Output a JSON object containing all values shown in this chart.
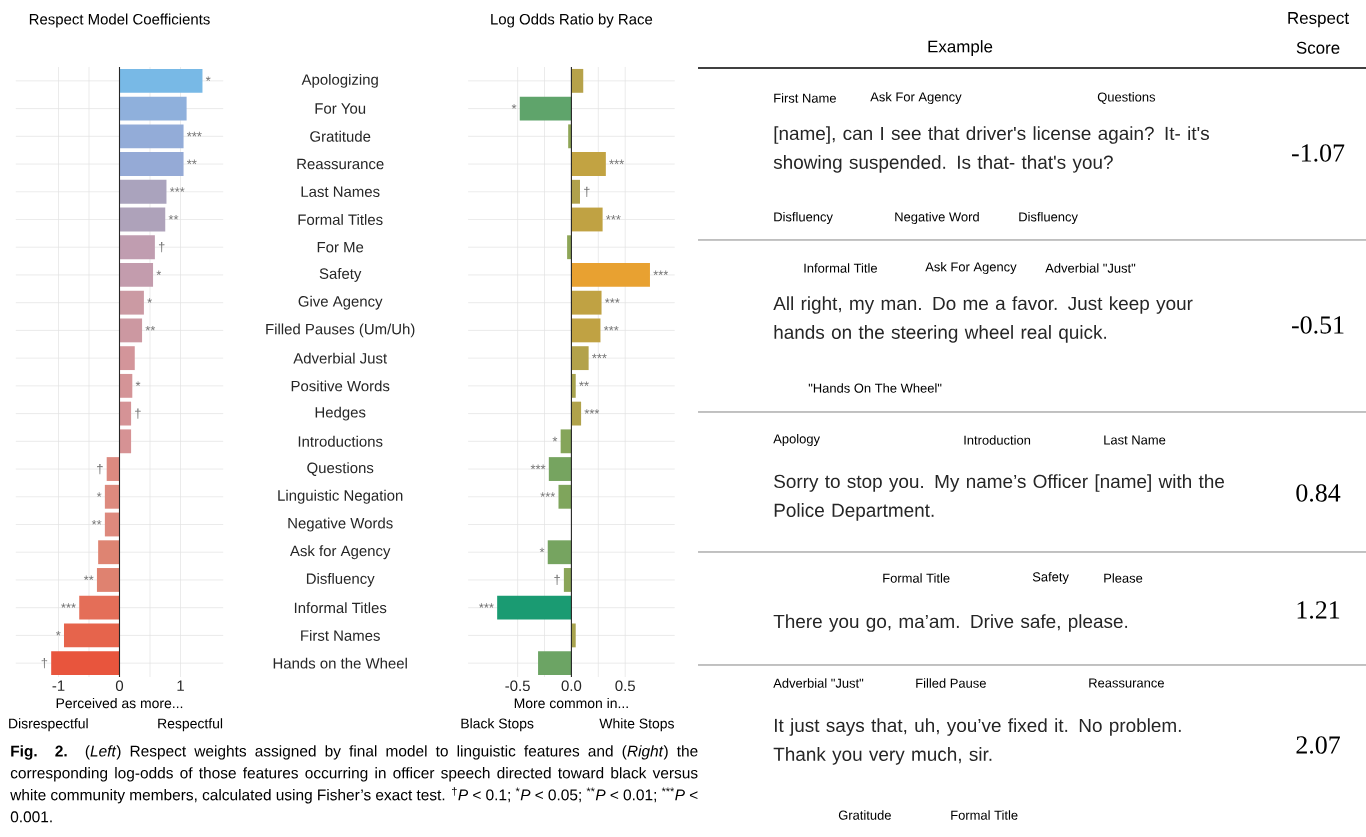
{
  "chart_data": [
    {
      "type": "bar",
      "orientation": "horizontal",
      "title": "Respect Model Coefficients",
      "xlabel": "Perceived as more...",
      "categories": [
        "Apologizing",
        "For You",
        "Gratitude",
        "Reassurance",
        "Last Names",
        "Formal Titles",
        "For Me",
        "Safety",
        "Give Agency",
        "Filled Pauses (Um/Uh)",
        "Adverbial Just",
        "Positive Words",
        "Hedges",
        "Introductions",
        "Questions",
        "Linguistic Negation",
        "Negative Words",
        "Ask for Agency",
        "Disfluency",
        "Informal Titles",
        "First Names",
        "Hands on the Wheel"
      ],
      "values": [
        1.36,
        1.1,
        1.05,
        1.05,
        0.77,
        0.75,
        0.58,
        0.55,
        0.4,
        0.37,
        0.25,
        0.21,
        0.19,
        0.19,
        -0.21,
        -0.24,
        -0.24,
        -0.35,
        -0.37,
        -0.66,
        -0.91,
        -1.12
      ],
      "colors": [
        "#78b9e6",
        "#8fb0dc",
        "#93acd8",
        "#95aad6",
        "#aaa3bd",
        "#aea2ba",
        "#c09db0",
        "#c39cad",
        "#cb9aa3",
        "#cc98a1",
        "#d3959a",
        "#d49497",
        "#d59396",
        "#d69294",
        "#dc8a80",
        "#dd8a7e",
        "#dd897d",
        "#de8472",
        "#df8270",
        "#e46e58",
        "#e6644c",
        "#e8553d"
      ],
      "value_labels": [
        "*",
        null,
        "***",
        "**",
        "***",
        "**",
        "†",
        "*",
        "*",
        "**",
        null,
        "*",
        "†",
        null,
        "†",
        "*",
        "**",
        null,
        "**",
        "***",
        "*",
        "†"
      ],
      "xlim": [
        -1.7,
        1.7
      ],
      "xticks": [
        -1,
        0,
        1
      ],
      "grid": true,
      "annotations": [
        "Disrespectful",
        "Respectful",
        "**Fig. 2.** (*Left*) Respect weights assigned by final model to linguistic features and (*Right*) the corresponding log-odds of those features occurring in officer speech directed toward black versus white community members, calculated using Fisher’s exact test. $^{†}$*P* < 0.1; $^{*}$*P* < 0.05; $^{**}$*P* < 0.01; $^{***}$*P* < 0.001."
      ]
    },
    {
      "type": "bar",
      "orientation": "horizontal",
      "title": "Log Odds Ratio by Race",
      "xlabel": "More common in...",
      "values": [
        0.11,
        -0.48,
        -0.03,
        0.32,
        0.08,
        0.29,
        -0.04,
        0.73,
        0.28,
        0.27,
        0.16,
        0.04,
        0.09,
        -0.1,
        -0.21,
        -0.12,
        0.0,
        -0.22,
        -0.07,
        -0.69,
        0.04,
        -0.31
      ],
      "colors": [
        "#b6a24a",
        "#5fa46b",
        "#8fa656",
        "#c2a342",
        "#b0a14c",
        "#c0a243",
        "#8ea657",
        "#e8a131",
        "#c0a243",
        "#c0a243",
        "#b3a24a",
        "#a8a34e",
        "#b0a24b",
        "#85a55a",
        "#76a460",
        "#7fa55c",
        "#98a553",
        "#76a460",
        "#8aa558",
        "#1a9b72",
        "#a8a34e",
        "#6ca464"
      ],
      "value_labels": [
        null,
        "*",
        null,
        "***",
        "†",
        "***",
        null,
        "***",
        "***",
        "***",
        "***",
        "**",
        "***",
        "*",
        "***",
        "***",
        null,
        "*",
        "†",
        "***",
        null,
        null
      ],
      "xlim": [
        -0.96,
        0.96
      ],
      "xticks": [
        -0.5,
        {
          "value": 0,
          "label": "0.0"
        },
        0.5
      ],
      "grid": true,
      "annotations": [
        "Black Stops",
        "White Stops"
      ]
    },
    {
      "type": "other",
      "annotations": [
        "Example",
        "Respect Score",
        "First Name",
        "Ask For Agency",
        "Questions",
        "[name], can I see that driver's license again? It- it's showing suspended. Is that- that's you?",
        "Disfluency",
        "Negative Word",
        "Disfluency",
        "-1.07",
        "Informal Title",
        "Ask For Agency",
        "Adverbial \"Just\"",
        "All right, my man. Do me a favor. Just keep your hands on the steering wheel real quick.",
        "\"Hands On The Wheel\"",
        "-0.51",
        "Apology",
        "Introduction",
        "Last Name",
        "Sorry to stop you. My name’s Officer [name] with the Police Department.",
        "0.84",
        "Formal Title",
        "Safety",
        "Please",
        "There you go, ma’am. Drive safe, please.",
        "1.21",
        "Adverbial \"Just\"",
        "Filled Pause",
        "Reassurance",
        "It just says that, uh, you’ve fixed it. No problem. Thank you very much, sir.",
        "Gratitude",
        "Formal Title",
        "2.07"
      ]
    }
  ]
}
